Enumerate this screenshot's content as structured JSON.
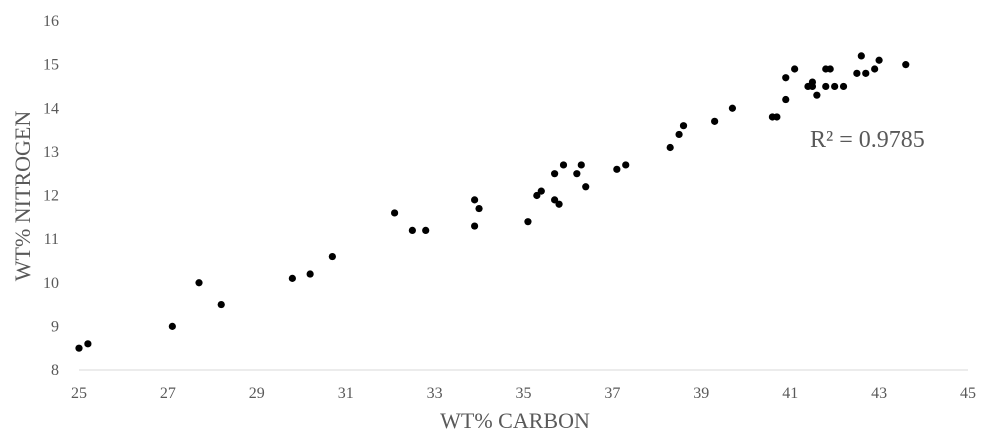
{
  "chart_data": {
    "type": "scatter",
    "title": "",
    "xlabel": "WT% CARBON",
    "ylabel": "WT% NITROGEN",
    "xlim": [
      25,
      45
    ],
    "ylim": [
      8,
      16
    ],
    "xticks": [
      25,
      27,
      29,
      31,
      33,
      35,
      37,
      39,
      41,
      43,
      45
    ],
    "yticks": [
      8,
      9,
      10,
      11,
      12,
      13,
      14,
      15,
      16
    ],
    "grid": false,
    "legend": "none",
    "marker_color": "#000000",
    "annotation": "R² = 0.9785",
    "series": [
      {
        "points": [
          [
            25.0,
            8.5
          ],
          [
            25.2,
            8.6
          ],
          [
            27.1,
            9.0
          ],
          [
            27.7,
            10.0
          ],
          [
            28.2,
            9.5
          ],
          [
            29.8,
            10.1
          ],
          [
            30.2,
            10.2
          ],
          [
            30.7,
            10.6
          ],
          [
            32.1,
            11.6
          ],
          [
            32.5,
            11.2
          ],
          [
            32.8,
            11.2
          ],
          [
            33.9,
            11.9
          ],
          [
            33.9,
            11.3
          ],
          [
            34.0,
            11.7
          ],
          [
            35.1,
            11.4
          ],
          [
            35.3,
            12.0
          ],
          [
            35.4,
            12.1
          ],
          [
            35.7,
            11.9
          ],
          [
            35.7,
            12.5
          ],
          [
            35.8,
            11.8
          ],
          [
            35.9,
            12.7
          ],
          [
            36.2,
            12.5
          ],
          [
            36.3,
            12.7
          ],
          [
            36.4,
            12.2
          ],
          [
            37.1,
            12.6
          ],
          [
            37.3,
            12.7
          ],
          [
            38.3,
            13.1
          ],
          [
            38.5,
            13.4
          ],
          [
            38.6,
            13.6
          ],
          [
            39.3,
            13.7
          ],
          [
            39.7,
            14.0
          ],
          [
            40.6,
            13.8
          ],
          [
            40.7,
            13.8
          ],
          [
            40.9,
            14.7
          ],
          [
            40.9,
            14.2
          ],
          [
            41.1,
            14.9
          ],
          [
            41.4,
            14.5
          ],
          [
            41.5,
            14.6
          ],
          [
            41.5,
            14.5
          ],
          [
            41.6,
            14.3
          ],
          [
            41.8,
            14.9
          ],
          [
            41.8,
            14.5
          ],
          [
            41.9,
            14.9
          ],
          [
            42.0,
            14.5
          ],
          [
            42.2,
            14.5
          ],
          [
            42.5,
            14.8
          ],
          [
            42.6,
            15.2
          ],
          [
            42.7,
            14.8
          ],
          [
            42.9,
            14.9
          ],
          [
            43.0,
            15.1
          ],
          [
            43.6,
            15.0
          ]
        ]
      }
    ]
  }
}
